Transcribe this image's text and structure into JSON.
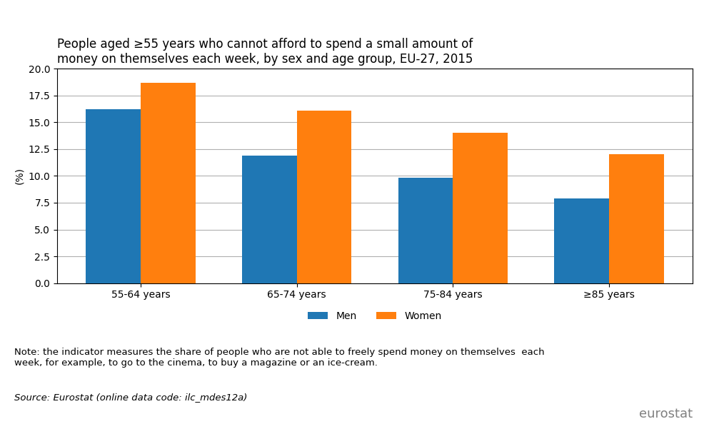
{
  "chart_data": {
    "type": "bar",
    "title": "People aged ≥55 years who cannot afford to spend a small amount of\nmoney on themselves each week, by sex and age group, EU-27, 2015",
    "ylabel": "(%)",
    "categories": [
      "55-64 years",
      "65-74 years",
      "75-84 years",
      "≥85 years"
    ],
    "series": [
      {
        "name": "Men",
        "values": [
          16.2,
          11.9,
          9.8,
          7.9
        ]
      },
      {
        "name": "Women",
        "values": [
          18.7,
          16.1,
          14.0,
          12.0
        ]
      }
    ],
    "ylim": [
      0,
      20.0
    ],
    "yticks": [
      {
        "value": 0.0,
        "label": "0.0"
      },
      {
        "value": 2.5,
        "label": "2.5"
      },
      {
        "value": 5.0,
        "label": "5.0"
      },
      {
        "value": 7.5,
        "label": "7.5"
      },
      {
        "value": 10.0,
        "label": "10.0"
      },
      {
        "value": 12.5,
        "label": "12.5"
      },
      {
        "value": 15.0,
        "label": "15.0"
      },
      {
        "value": 17.5,
        "label": "17.5"
      },
      {
        "value": 20.0,
        "label": "20.0"
      }
    ],
    "grid": true,
    "legend": "upper center",
    "annotations": [
      "Note: the indicator measures the share of people who are not able to freely spend money on themselves  each\nweek, for example, to go to the cinema, to buy a magazine or an ice-cream.",
      "Source: Eurostat (online data code: ilc_mdes12a)",
      "eurostat"
    ]
  }
}
